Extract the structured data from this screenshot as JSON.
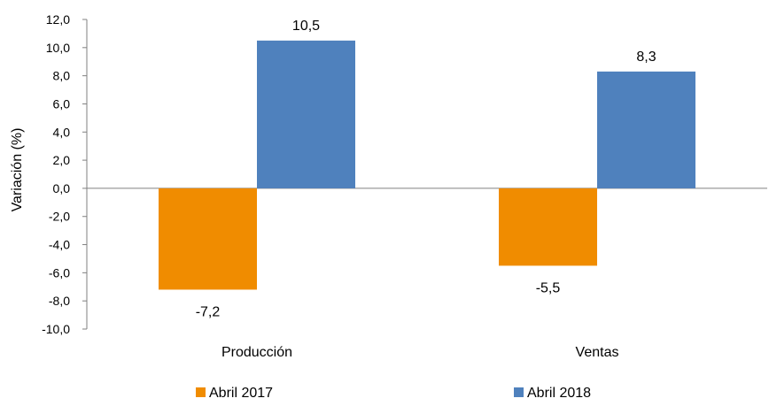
{
  "chart_data": {
    "type": "bar",
    "title": "",
    "xlabel": "",
    "ylabel": "Variación (%)",
    "categories": [
      "Producción",
      "Ventas"
    ],
    "series": [
      {
        "name": "Abril 2017",
        "values": [
          -7.2,
          -5.5
        ],
        "labels": [
          "-7,2",
          "-5,5"
        ],
        "color": "#F08C00"
      },
      {
        "name": "Abril 2018",
        "values": [
          10.5,
          8.3
        ],
        "labels": [
          "10,5",
          "8,3"
        ],
        "color": "#4F81BD"
      }
    ],
    "ylim": [
      -10,
      12
    ],
    "yticks": [
      12,
      10,
      8,
      6,
      4,
      2,
      0,
      -2,
      -4,
      -6,
      -8,
      -10
    ],
    "ytick_labels": [
      "12,0",
      "10,0",
      "8,0",
      "6,0",
      "4,0",
      "2,0",
      "0,0",
      "-2,0",
      "-4,0",
      "-6,0",
      "-8,0",
      "-10,0"
    ],
    "grid": false,
    "legend_position": "bottom",
    "colors": {
      "axis": "#808080",
      "text": "#000000"
    }
  }
}
